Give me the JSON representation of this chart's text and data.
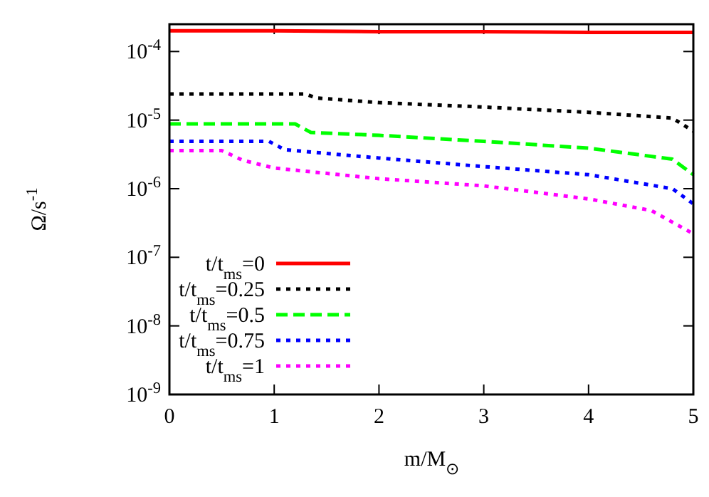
{
  "chart_data": {
    "type": "line",
    "xlabel": "m/M$_{⊙}$",
    "ylabel": "Ω/s$^{-1}$",
    "log": "y",
    "xlim": [
      0,
      5
    ],
    "xticks": [
      0,
      1,
      2,
      3,
      4,
      5
    ],
    "ylim": [
      1e-09,
      0.00025
    ],
    "yticks": [
      {
        "value": 1e-09,
        "label": "10$^{-9}$"
      },
      {
        "value": 1e-08,
        "label": "10$^{-8}$"
      },
      {
        "value": 1e-07,
        "label": "10$^{-7}$"
      },
      {
        "value": 1e-06,
        "label": "10$^{-6}$"
      },
      {
        "value": 1e-05,
        "label": "10$^{-5}$"
      },
      {
        "value": 0.0001,
        "label": "10$^{-4}$"
      }
    ],
    "grid": false,
    "legend": "bottom left",
    "marker": "none",
    "series": [
      {
        "name": "t/t$_{ms}$=0",
        "color": "#ff0000",
        "line_style": "solid",
        "x": [
          0,
          1,
          2,
          3,
          4,
          5
        ],
        "values": [
          0.0002,
          0.0002,
          0.000195,
          0.000195,
          0.00019,
          0.00019
        ]
      },
      {
        "name": "t/t$_{ms}$=0.25",
        "color": "#000000",
        "line_style": "dotted",
        "x": [
          0,
          1.3,
          1.4,
          2,
          3,
          4,
          4.8,
          5
        ],
        "values": [
          2.4e-05,
          2.4e-05,
          2.1e-05,
          1.8e-05,
          1.55e-05,
          1.3e-05,
          1.07e-05,
          6.9e-06
        ]
      },
      {
        "name": "t/t$_{ms}$=0.5",
        "color": "#00ff00",
        "line_style": "dashed",
        "x": [
          0,
          1.2,
          1.35,
          2,
          3,
          4,
          4.8,
          5
        ],
        "values": [
          8.8e-06,
          8.8e-06,
          6.6e-06,
          6e-06,
          4.9e-06,
          3.9e-06,
          2.7e-06,
          1.6e-06
        ]
      },
      {
        "name": "t/t$_{ms}$=0.75",
        "color": "#0000ff",
        "line_style": "dotted",
        "x": [
          0,
          0.95,
          1.1,
          2,
          3,
          4,
          4.8,
          5
        ],
        "values": [
          4.9e-06,
          4.9e-06,
          3.7e-06,
          2.8e-06,
          2.1e-06,
          1.6e-06,
          1e-06,
          6e-07
        ]
      },
      {
        "name": "t/t$_{ms}$=1",
        "color": "#ff00ff",
        "line_style": "dotted",
        "x": [
          0,
          0.5,
          0.7,
          1,
          2,
          3,
          4,
          4.6,
          5
        ],
        "values": [
          3.6e-06,
          3.6e-06,
          2.6e-06,
          2e-06,
          1.4e-06,
          1.1e-06,
          7.1e-07,
          4.8e-07,
          2.2e-07
        ]
      }
    ]
  }
}
